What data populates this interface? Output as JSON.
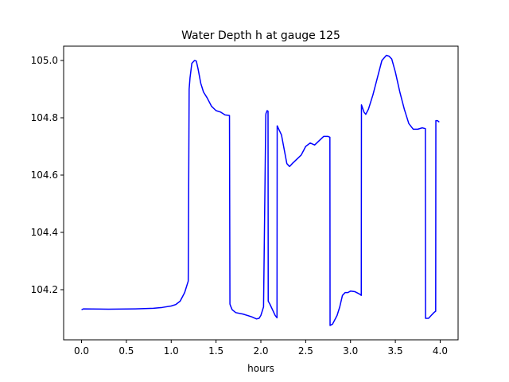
{
  "chart_data": {
    "type": "line",
    "title": "Water Depth h at gauge 125",
    "xlabel": "hours",
    "ylabel": "",
    "xlim": [
      -0.2,
      4.2
    ],
    "ylim": [
      104.025,
      105.05
    ],
    "xticks": [
      0.0,
      0.5,
      1.0,
      1.5,
      2.0,
      2.5,
      3.0,
      3.5,
      4.0
    ],
    "xtick_labels": [
      "0.0",
      "0.5",
      "1.0",
      "1.5",
      "2.0",
      "2.5",
      "3.0",
      "3.5",
      "4.0"
    ],
    "yticks": [
      104.2,
      104.4,
      104.6,
      104.8,
      105.0
    ],
    "ytick_labels": [
      "104.2",
      "104.4",
      "104.6",
      "104.8",
      "105.0"
    ],
    "grid": false,
    "series": [
      {
        "color": "#0000ff",
        "x": [
          0.0,
          0.02,
          0.3,
          0.6,
          0.8,
          0.9,
          1.0,
          1.05,
          1.1,
          1.15,
          1.19,
          1.2,
          1.21,
          1.23,
          1.26,
          1.28,
          1.3,
          1.33,
          1.36,
          1.4,
          1.45,
          1.5,
          1.55,
          1.6,
          1.65,
          1.655,
          1.66,
          1.68,
          1.72,
          1.8,
          1.9,
          1.95,
          1.98,
          2.0,
          2.03,
          2.055,
          2.057,
          2.07,
          2.08,
          2.082,
          2.1,
          2.13,
          2.16,
          2.18,
          2.182,
          2.2,
          2.23,
          2.26,
          2.29,
          2.32,
          2.35,
          2.4,
          2.45,
          2.5,
          2.55,
          2.6,
          2.65,
          2.7,
          2.75,
          2.77,
          2.772,
          2.8,
          2.85,
          2.88,
          2.91,
          2.94,
          2.97,
          3.0,
          3.05,
          3.1,
          3.12,
          3.122,
          3.15,
          3.17,
          3.2,
          3.25,
          3.3,
          3.35,
          3.4,
          3.43,
          3.46,
          3.5,
          3.55,
          3.6,
          3.65,
          3.7,
          3.75,
          3.8,
          3.835,
          3.837,
          3.87,
          3.9,
          3.93,
          3.95,
          3.952,
          3.97,
          3.99
        ],
        "y": [
          104.13,
          104.133,
          104.132,
          104.133,
          104.135,
          104.138,
          104.143,
          104.148,
          104.16,
          104.19,
          104.23,
          104.9,
          104.94,
          104.99,
          105.0,
          104.998,
          104.97,
          104.92,
          104.89,
          104.87,
          104.84,
          104.825,
          104.82,
          104.81,
          104.808,
          104.15,
          104.145,
          104.13,
          104.12,
          104.115,
          104.105,
          104.098,
          104.1,
          104.11,
          104.14,
          104.808,
          104.815,
          104.825,
          104.823,
          104.16,
          104.15,
          104.13,
          104.11,
          104.102,
          104.772,
          104.76,
          104.74,
          104.69,
          104.64,
          104.63,
          104.64,
          104.655,
          104.67,
          104.7,
          104.712,
          104.705,
          104.72,
          104.735,
          104.735,
          104.732,
          104.075,
          104.08,
          104.11,
          104.14,
          104.18,
          104.19,
          104.19,
          104.195,
          104.193,
          104.185,
          104.18,
          104.845,
          104.82,
          104.812,
          104.83,
          104.88,
          104.94,
          105.0,
          105.018,
          105.015,
          105.005,
          104.96,
          104.89,
          104.83,
          104.78,
          104.76,
          104.76,
          104.765,
          104.762,
          104.1,
          104.1,
          104.11,
          104.12,
          104.125,
          104.79,
          104.79,
          104.785
        ]
      }
    ]
  }
}
